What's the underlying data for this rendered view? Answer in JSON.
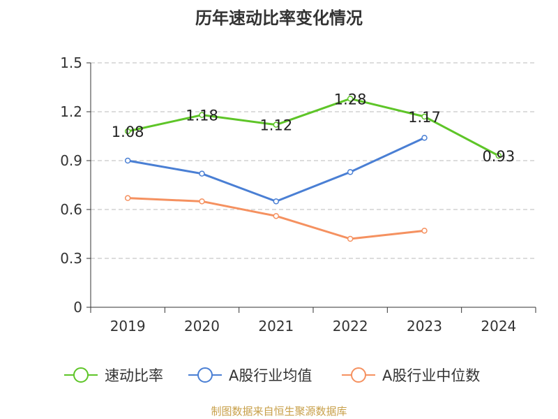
{
  "chart_data": {
    "type": "line",
    "title": "历年速动比率变化情况",
    "categories": [
      "2019",
      "2020",
      "2021",
      "2022",
      "2023",
      "2024"
    ],
    "ylim": [
      0,
      1.5
    ],
    "yticks": [
      "0",
      "0.3",
      "0.6",
      "0.9",
      "1.2",
      "1.5"
    ],
    "ytick_values": [
      0,
      0.3,
      0.6,
      0.9,
      1.2,
      1.5
    ],
    "grid": true,
    "legend_position": "bottom",
    "series": [
      {
        "name": "速动比率",
        "color": "#5ec528",
        "values": [
          1.08,
          1.18,
          1.12,
          1.28,
          1.17,
          0.93
        ],
        "labels": [
          "1.08",
          "1.18",
          "1.12",
          "1.28",
          "1.17",
          "0.93"
        ]
      },
      {
        "name": "A股行业均值",
        "color": "#4a7fd4",
        "values": [
          0.9,
          0.82,
          0.65,
          0.83,
          1.04,
          null
        ]
      },
      {
        "name": "A股行业中位数",
        "color": "#f59160",
        "values": [
          0.67,
          0.65,
          0.56,
          0.42,
          0.47,
          null
        ]
      }
    ]
  },
  "source_text": "制图数据来自恒生聚源数据库"
}
